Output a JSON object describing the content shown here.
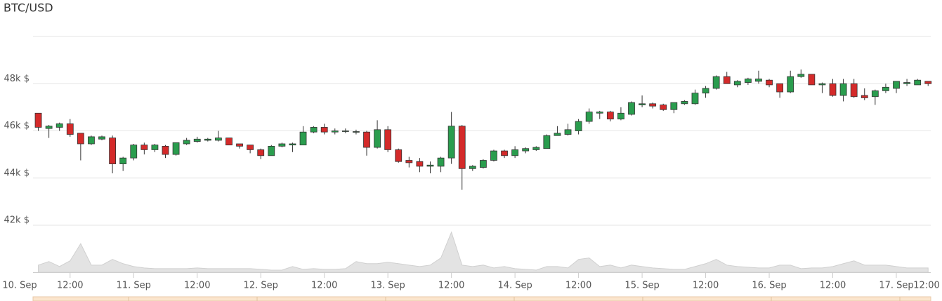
{
  "chart_data": {
    "type": "candlestick",
    "title": "BTC/USD",
    "xlim": [
      5,
      174.5
    ],
    "xticks": [
      {
        "value": 0,
        "label": "10. Sep"
      },
      {
        "value": 12,
        "label": "12:00"
      },
      {
        "value": 24,
        "label": "11. Sep"
      },
      {
        "value": 36,
        "label": "12:00"
      },
      {
        "value": 48,
        "label": "12. Sep"
      },
      {
        "value": 60,
        "label": "12:00"
      },
      {
        "value": 72,
        "label": "13. Sep"
      },
      {
        "value": 84,
        "label": "12:00"
      },
      {
        "value": 96,
        "label": "14. Sep"
      },
      {
        "value": 108,
        "label": "12:00"
      },
      {
        "value": 120,
        "label": "15. Sep"
      },
      {
        "value": 132,
        "label": "12:00"
      },
      {
        "value": 144,
        "label": "16. Sep"
      },
      {
        "value": 156,
        "label": "12:00"
      },
      {
        "value": 168,
        "label": "17. Sep"
      },
      {
        "value": 180,
        "label": "12:00"
      }
    ],
    "ylim": [
      42000,
      50000
    ],
    "yticks": [
      {
        "value": 42000,
        "label": "42k $"
      },
      {
        "value": 44000,
        "label": "44k $"
      },
      {
        "value": 46000,
        "label": "46k $"
      },
      {
        "value": 48000,
        "label": "48k $"
      }
    ],
    "grid": true,
    "up_color": "#2a9d4e",
    "down_color": "#d42a2a",
    "volume_color": "#e3e3e3",
    "x": [
      6,
      8,
      10,
      12,
      14,
      16,
      18,
      20,
      22,
      24,
      26,
      28,
      30,
      32,
      34,
      36,
      38,
      40,
      42,
      44,
      46,
      48,
      50,
      52,
      54,
      56,
      58,
      60,
      62,
      64,
      66,
      68,
      70,
      72,
      74,
      76,
      78,
      80,
      82,
      84,
      86,
      88,
      90,
      92,
      94,
      96,
      98,
      100,
      102,
      104,
      106,
      108,
      110,
      112,
      114,
      116,
      118,
      120,
      122,
      124,
      126,
      128,
      130,
      132,
      134,
      136,
      138,
      140,
      142,
      144,
      146,
      148,
      150,
      152,
      154,
      156,
      158,
      160,
      162,
      164,
      166,
      168,
      170,
      172,
      174
    ],
    "open": [
      46750,
      46100,
      46150,
      46300,
      45900,
      45450,
      45650,
      45700,
      44600,
      44850,
      45400,
      45200,
      45350,
      45000,
      45450,
      45550,
      45600,
      45600,
      45700,
      45450,
      45400,
      45200,
      44950,
      45350,
      45400,
      45400,
      45950,
      46150,
      45950,
      45980,
      45950,
      45950,
      45300,
      46050,
      45200,
      44750,
      44700,
      44500,
      44500,
      44850,
      46200,
      44400,
      44450,
      44750,
      45150,
      44950,
      45150,
      45200,
      45250,
      45800,
      45850,
      46000,
      46400,
      46750,
      46800,
      46500,
      46700,
      47100,
      47150,
      47100,
      46900,
      47150,
      47150,
      47600,
      47800,
      48300,
      47950,
      48050,
      48100,
      48150,
      48000,
      47650,
      48300,
      48400,
      47950,
      48000,
      47500,
      48000,
      47500,
      47450,
      47700,
      47800,
      48000,
      47950,
      48100
    ],
    "close": [
      46150,
      46200,
      46300,
      45850,
      45450,
      45750,
      45750,
      44600,
      44850,
      45400,
      45200,
      45400,
      45000,
      45500,
      45600,
      45650,
      45650,
      45700,
      45400,
      45350,
      45200,
      44950,
      45350,
      45450,
      45450,
      45950,
      46150,
      45950,
      46000,
      46000,
      45970,
      45300,
      46050,
      45200,
      44700,
      44650,
      44500,
      44550,
      44850,
      46200,
      44400,
      44500,
      44750,
      45150,
      44950,
      45200,
      45250,
      45300,
      45800,
      45900,
      46050,
      46400,
      46800,
      46800,
      46500,
      46750,
      47200,
      47150,
      47050,
      46900,
      47200,
      47250,
      47600,
      47800,
      48300,
      48000,
      48100,
      48200,
      48200,
      47950,
      47650,
      48300,
      48400,
      47950,
      48000,
      47500,
      48000,
      47450,
      47400,
      47700,
      47850,
      48100,
      48050,
      48150,
      48000
    ],
    "high": [
      46750,
      46250,
      46350,
      46500,
      45900,
      45800,
      45800,
      45800,
      44900,
      45450,
      45500,
      45450,
      45400,
      45500,
      45700,
      45750,
      45700,
      46000,
      45700,
      45450,
      45400,
      45250,
      45400,
      45500,
      45500,
      46200,
      46200,
      46300,
      46100,
      46100,
      46050,
      46000,
      46450,
      46200,
      45250,
      44900,
      44850,
      44700,
      44900,
      46800,
      46250,
      44550,
      44800,
      45200,
      45200,
      45350,
      45300,
      45350,
      45850,
      46200,
      46300,
      46500,
      46950,
      46850,
      46850,
      47000,
      47250,
      47500,
      47200,
      47150,
      47200,
      47300,
      47750,
      47900,
      48350,
      48500,
      48150,
      48250,
      48550,
      48200,
      48000,
      48550,
      48600,
      48400,
      48050,
      48200,
      48200,
      48200,
      47800,
      47750,
      48000,
      48100,
      48200,
      48200,
      48100
    ],
    "low": [
      46000,
      45700,
      46000,
      45750,
      44750,
      45400,
      45600,
      44200,
      44300,
      44750,
      45000,
      45100,
      44850,
      44950,
      45400,
      45500,
      45550,
      45550,
      45400,
      45250,
      45050,
      44800,
      44950,
      45300,
      45100,
      45400,
      45900,
      45850,
      45850,
      45900,
      45850,
      44950,
      45250,
      45100,
      44650,
      44450,
      44250,
      44200,
      44250,
      44600,
      43500,
      44300,
      44400,
      44700,
      44850,
      44850,
      45050,
      45150,
      45250,
      45800,
      45800,
      45850,
      46300,
      46500,
      46400,
      46450,
      46650,
      47000,
      46950,
      46850,
      46750,
      47100,
      47100,
      47400,
      47750,
      48000,
      47850,
      47950,
      48000,
      47850,
      47400,
      47600,
      48250,
      47950,
      47600,
      47450,
      47250,
      47400,
      47300,
      47100,
      47600,
      47600,
      47900,
      47950,
      47900
    ],
    "volume": [
      10,
      15,
      8,
      16,
      40,
      10,
      10,
      18,
      12,
      8,
      6,
      5,
      5,
      5,
      5,
      6,
      5,
      5,
      5,
      5,
      5,
      4,
      3,
      3,
      8,
      4,
      5,
      4,
      4,
      5,
      15,
      12,
      12,
      14,
      12,
      10,
      8,
      10,
      20,
      56,
      10,
      8,
      10,
      6,
      8,
      5,
      4,
      3,
      8,
      8,
      6,
      18,
      20,
      8,
      10,
      6,
      10,
      8,
      6,
      5,
      4,
      4,
      8,
      12,
      18,
      10,
      8,
      7,
      6,
      6,
      10,
      10,
      5,
      6,
      6,
      8,
      12,
      16,
      10,
      10,
      10,
      8,
      6,
      6,
      6
    ]
  }
}
